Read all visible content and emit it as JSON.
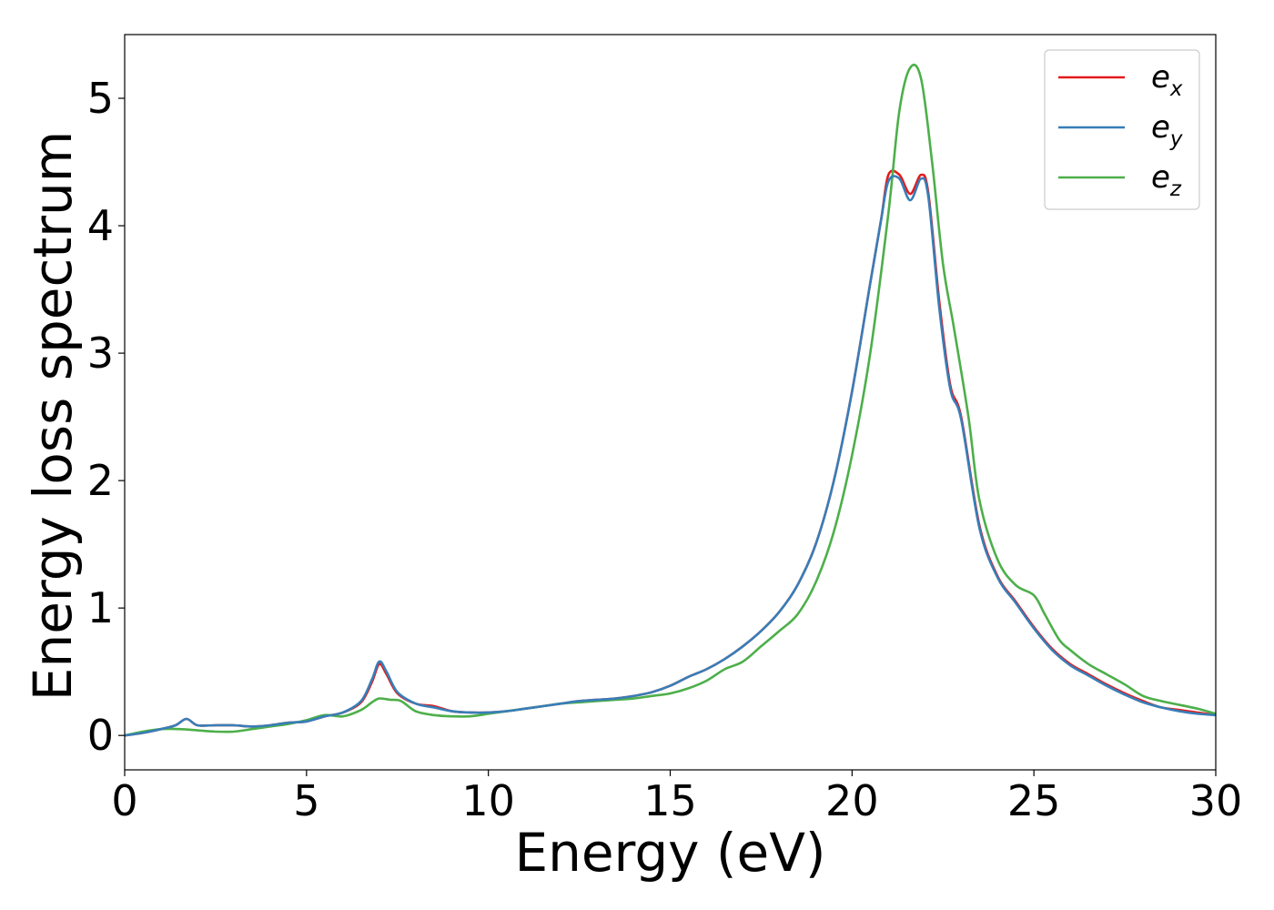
{
  "chart_data": {
    "type": "line",
    "xlabel": "Energy (eV)",
    "ylabel": "Energy loss spectrum",
    "xlim": [
      0,
      30
    ],
    "ylim": [
      -0.27,
      5.5
    ],
    "xticks": [
      "0",
      "5",
      "10",
      "15",
      "20",
      "25",
      "30"
    ],
    "yticks": [
      "0",
      "1",
      "2",
      "3",
      "4",
      "5"
    ],
    "grid": false,
    "legend_position": "top-right",
    "series": [
      {
        "name": "e_x",
        "legend_base": "e",
        "legend_sub": "x",
        "color": "#e41a1c",
        "x": [
          0,
          0.5,
          1.0,
          1.4,
          1.7,
          2.0,
          2.5,
          3.0,
          3.5,
          4.0,
          4.5,
          5.0,
          5.5,
          6.0,
          6.5,
          6.8,
          7.0,
          7.2,
          7.5,
          8.0,
          8.5,
          9.0,
          9.5,
          10,
          10.5,
          11,
          11.5,
          12,
          12.5,
          13,
          13.5,
          14,
          14.5,
          15,
          15.5,
          16,
          16.5,
          17,
          17.5,
          18,
          18.5,
          19,
          19.5,
          20,
          20.5,
          20.8,
          21.0,
          21.3,
          21.6,
          21.9,
          22.1,
          22.4,
          22.7,
          23.0,
          23.5,
          24.0,
          24.5,
          25.0,
          25.5,
          26,
          26.5,
          27,
          27.5,
          28,
          28.5,
          29,
          29.5,
          30
        ],
        "y": [
          0.0,
          0.02,
          0.05,
          0.08,
          0.13,
          0.08,
          0.08,
          0.08,
          0.07,
          0.08,
          0.1,
          0.11,
          0.15,
          0.18,
          0.26,
          0.42,
          0.56,
          0.48,
          0.33,
          0.25,
          0.23,
          0.19,
          0.18,
          0.18,
          0.19,
          0.21,
          0.23,
          0.25,
          0.27,
          0.28,
          0.29,
          0.31,
          0.34,
          0.39,
          0.46,
          0.52,
          0.6,
          0.7,
          0.82,
          0.97,
          1.18,
          1.5,
          2.0,
          2.7,
          3.55,
          4.05,
          4.4,
          4.4,
          4.25,
          4.4,
          4.25,
          3.4,
          2.75,
          2.5,
          1.65,
          1.25,
          1.05,
          0.85,
          0.68,
          0.56,
          0.48,
          0.4,
          0.33,
          0.27,
          0.22,
          0.2,
          0.18,
          0.16
        ]
      },
      {
        "name": "e_y",
        "legend_base": "e",
        "legend_sub": "y",
        "color": "#377eb8",
        "x": [
          0,
          0.5,
          1.0,
          1.4,
          1.7,
          2.0,
          2.5,
          3.0,
          3.5,
          4.0,
          4.5,
          5.0,
          5.5,
          6.0,
          6.5,
          6.8,
          7.0,
          7.2,
          7.5,
          8.0,
          8.5,
          9.0,
          9.5,
          10,
          10.5,
          11,
          11.5,
          12,
          12.5,
          13,
          13.5,
          14,
          14.5,
          15,
          15.5,
          16,
          16.5,
          17,
          17.5,
          18,
          18.5,
          19,
          19.5,
          20,
          20.5,
          20.8,
          21.0,
          21.3,
          21.6,
          21.9,
          22.1,
          22.4,
          22.7,
          23.0,
          23.5,
          24.0,
          24.5,
          25.0,
          25.5,
          26,
          26.5,
          27,
          27.5,
          28,
          28.5,
          29,
          29.5,
          30
        ],
        "y": [
          0.0,
          0.02,
          0.05,
          0.08,
          0.13,
          0.08,
          0.08,
          0.08,
          0.07,
          0.08,
          0.1,
          0.11,
          0.15,
          0.18,
          0.27,
          0.44,
          0.58,
          0.5,
          0.34,
          0.25,
          0.22,
          0.19,
          0.18,
          0.18,
          0.19,
          0.21,
          0.23,
          0.25,
          0.27,
          0.28,
          0.29,
          0.31,
          0.34,
          0.39,
          0.46,
          0.52,
          0.6,
          0.7,
          0.82,
          0.97,
          1.18,
          1.5,
          2.0,
          2.7,
          3.55,
          4.05,
          4.35,
          4.37,
          4.2,
          4.37,
          4.22,
          3.35,
          2.72,
          2.48,
          1.63,
          1.24,
          1.04,
          0.84,
          0.67,
          0.55,
          0.47,
          0.39,
          0.32,
          0.26,
          0.22,
          0.19,
          0.17,
          0.16
        ]
      },
      {
        "name": "e_z",
        "legend_base": "e",
        "legend_sub": "z",
        "color": "#4daf4a",
        "x": [
          0,
          0.5,
          1.0,
          1.5,
          2.0,
          2.5,
          3.0,
          3.5,
          4.0,
          4.5,
          5.0,
          5.5,
          6.0,
          6.5,
          6.8,
          7.0,
          7.3,
          7.6,
          8.0,
          8.5,
          9.0,
          9.5,
          10,
          10.5,
          11,
          11.5,
          12,
          12.5,
          13,
          13.5,
          14,
          14.5,
          15,
          15.5,
          16,
          16.5,
          17,
          17.5,
          18,
          18.5,
          19,
          19.5,
          20,
          20.5,
          21.0,
          21.3,
          21.6,
          21.9,
          22.2,
          22.5,
          22.8,
          23.2,
          23.5,
          24.0,
          24.5,
          25.0,
          25.3,
          25.7,
          26.0,
          26.5,
          27.0,
          27.5,
          28.0,
          28.5,
          29.0,
          29.5,
          30
        ],
        "y": [
          0.0,
          0.03,
          0.05,
          0.05,
          0.04,
          0.03,
          0.03,
          0.05,
          0.07,
          0.09,
          0.12,
          0.16,
          0.15,
          0.2,
          0.26,
          0.29,
          0.28,
          0.27,
          0.19,
          0.16,
          0.15,
          0.15,
          0.17,
          0.19,
          0.21,
          0.23,
          0.25,
          0.26,
          0.27,
          0.28,
          0.29,
          0.31,
          0.33,
          0.37,
          0.43,
          0.52,
          0.58,
          0.7,
          0.82,
          0.95,
          1.2,
          1.6,
          2.2,
          3.0,
          4.1,
          4.9,
          5.24,
          5.15,
          4.5,
          3.7,
          3.2,
          2.5,
          1.85,
          1.38,
          1.18,
          1.1,
          0.95,
          0.75,
          0.67,
          0.56,
          0.48,
          0.4,
          0.31,
          0.27,
          0.24,
          0.21,
          0.17
        ]
      }
    ]
  }
}
